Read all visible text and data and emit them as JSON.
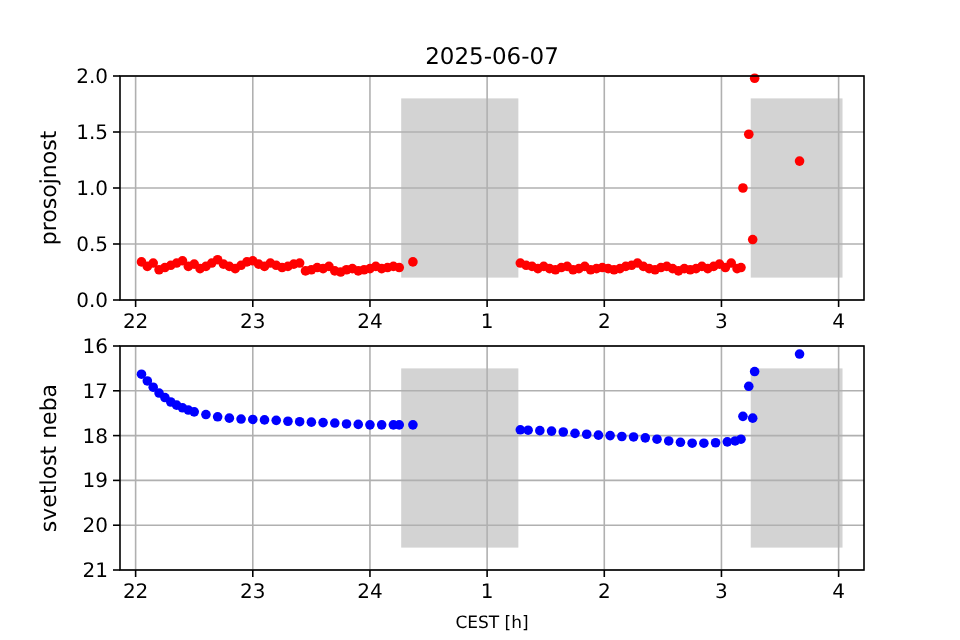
{
  "chart_data": [
    {
      "type": "scatter",
      "title": "2025-06-07",
      "ylabel": "prosojnost",
      "marker": "circle",
      "grid": true,
      "xlim": [
        "2025-06-07T21:52",
        "2025-06-08T04:13"
      ],
      "xticks": [
        {
          "value": "2025-06-07T22:00",
          "label": "22"
        },
        {
          "value": "2025-06-07T23:00",
          "label": "23"
        },
        {
          "value": "2025-06-08T00:00",
          "label": "24"
        },
        {
          "value": "2025-06-08T01:00",
          "label": "1"
        },
        {
          "value": "2025-06-08T02:00",
          "label": "2"
        },
        {
          "value": "2025-06-08T03:00",
          "label": "3"
        },
        {
          "value": "2025-06-08T04:00",
          "label": "4"
        }
      ],
      "ylim": [
        0,
        2
      ],
      "yticks": [
        {
          "value": 0,
          "label": "0.0"
        },
        0.5,
        {
          "value": 1,
          "label": "1.0"
        },
        1.5,
        {
          "value": 2,
          "label": "2.0"
        }
      ],
      "bands": [
        {
          "axis": "x",
          "from": "2025-06-08T00:16",
          "to": "2025-06-08T01:16",
          "color": "#d3d3d3"
        },
        {
          "axis": "x",
          "from": "2025-06-08T03:15",
          "to": "2025-06-08T04:02",
          "color": "#d3d3d3"
        }
      ],
      "series": [
        {
          "color": "#ff0000",
          "x": [
            "2025-06-07T22:03",
            "2025-06-07T22:06",
            "2025-06-07T22:09",
            "2025-06-07T22:12",
            "2025-06-07T22:15",
            "2025-06-07T22:18",
            "2025-06-07T22:21",
            "2025-06-07T22:24",
            "2025-06-07T22:27",
            "2025-06-07T22:30",
            "2025-06-07T22:33",
            "2025-06-07T22:36",
            "2025-06-07T22:39",
            "2025-06-07T22:42",
            "2025-06-07T22:45",
            "2025-06-07T22:48",
            "2025-06-07T22:51",
            "2025-06-07T22:54",
            "2025-06-07T22:57",
            "2025-06-07T23:00",
            "2025-06-07T23:03",
            "2025-06-07T23:06",
            "2025-06-07T23:09",
            "2025-06-07T23:12",
            "2025-06-07T23:15",
            "2025-06-07T23:18",
            "2025-06-07T23:21",
            "2025-06-07T23:24",
            "2025-06-07T23:27",
            "2025-06-07T23:30",
            "2025-06-07T23:33",
            "2025-06-07T23:36",
            "2025-06-07T23:39",
            "2025-06-07T23:42",
            "2025-06-07T23:45",
            "2025-06-07T23:48",
            "2025-06-07T23:51",
            "2025-06-07T23:54",
            "2025-06-07T23:57",
            "2025-06-08T00:00",
            "2025-06-08T00:03",
            "2025-06-08T00:06",
            "2025-06-08T00:09",
            "2025-06-08T00:12",
            "2025-06-08T00:15",
            "2025-06-08T00:22",
            "2025-06-08T01:17",
            "2025-06-08T01:20",
            "2025-06-08T01:23",
            "2025-06-08T01:26",
            "2025-06-08T01:29",
            "2025-06-08T01:32",
            "2025-06-08T01:35",
            "2025-06-08T01:38",
            "2025-06-08T01:41",
            "2025-06-08T01:44",
            "2025-06-08T01:47",
            "2025-06-08T01:50",
            "2025-06-08T01:53",
            "2025-06-08T01:56",
            "2025-06-08T01:59",
            "2025-06-08T02:02",
            "2025-06-08T02:05",
            "2025-06-08T02:08",
            "2025-06-08T02:11",
            "2025-06-08T02:14",
            "2025-06-08T02:17",
            "2025-06-08T02:20",
            "2025-06-08T02:23",
            "2025-06-08T02:26",
            "2025-06-08T02:29",
            "2025-06-08T02:32",
            "2025-06-08T02:35",
            "2025-06-08T02:38",
            "2025-06-08T02:41",
            "2025-06-08T02:44",
            "2025-06-08T02:47",
            "2025-06-08T02:50",
            "2025-06-08T02:53",
            "2025-06-08T02:56",
            "2025-06-08T02:59",
            "2025-06-08T03:02",
            "2025-06-08T03:05",
            "2025-06-08T03:08",
            "2025-06-08T03:10",
            "2025-06-08T03:11",
            "2025-06-08T03:14",
            "2025-06-08T03:16",
            "2025-06-08T03:17",
            "2025-06-08T03:40"
          ],
          "values": [
            0.34,
            0.3,
            0.33,
            0.27,
            0.29,
            0.31,
            0.33,
            0.35,
            0.3,
            0.32,
            0.28,
            0.3,
            0.33,
            0.36,
            0.32,
            0.3,
            0.28,
            0.31,
            0.34,
            0.35,
            0.32,
            0.3,
            0.33,
            0.31,
            0.29,
            0.3,
            0.32,
            0.33,
            0.26,
            0.27,
            0.29,
            0.28,
            0.3,
            0.26,
            0.25,
            0.27,
            0.28,
            0.26,
            0.27,
            0.28,
            0.3,
            0.28,
            0.29,
            0.3,
            0.29,
            0.34,
            0.33,
            0.31,
            0.3,
            0.28,
            0.3,
            0.28,
            0.27,
            0.29,
            0.3,
            0.27,
            0.28,
            0.3,
            0.27,
            0.28,
            0.29,
            0.28,
            0.27,
            0.28,
            0.3,
            0.31,
            0.33,
            0.3,
            0.28,
            0.27,
            0.29,
            0.3,
            0.28,
            0.26,
            0.28,
            0.27,
            0.28,
            0.3,
            0.28,
            0.3,
            0.32,
            0.29,
            0.33,
            0.28,
            0.29,
            1.0,
            1.48,
            0.54,
            1.98,
            1.24
          ]
        }
      ]
    },
    {
      "type": "scatter",
      "ylabel": "svetlost neba",
      "xlabel": "CEST [h]",
      "marker": "circle",
      "grid": true,
      "xlim": [
        "2025-06-07T21:52",
        "2025-06-08T04:13"
      ],
      "xticks": [
        {
          "value": "2025-06-07T22:00",
          "label": "22"
        },
        {
          "value": "2025-06-07T23:00",
          "label": "23"
        },
        {
          "value": "2025-06-08T00:00",
          "label": "24"
        },
        {
          "value": "2025-06-08T01:00",
          "label": "1"
        },
        {
          "value": "2025-06-08T02:00",
          "label": "2"
        },
        {
          "value": "2025-06-08T03:00",
          "label": "3"
        },
        {
          "value": "2025-06-08T04:00",
          "label": "4"
        }
      ],
      "ylim": [
        21,
        16
      ],
      "yticks": [
        16,
        17,
        18,
        19,
        20,
        21
      ],
      "bands": [
        {
          "axis": "x",
          "from": "2025-06-08T00:16",
          "to": "2025-06-08T01:16",
          "color": "#d3d3d3"
        },
        {
          "axis": "x",
          "from": "2025-06-08T03:15",
          "to": "2025-06-08T04:02",
          "color": "#d3d3d3"
        }
      ],
      "series": [
        {
          "color": "#0000ff",
          "x": [
            "2025-06-07T22:03",
            "2025-06-07T22:06",
            "2025-06-07T22:09",
            "2025-06-07T22:12",
            "2025-06-07T22:15",
            "2025-06-07T22:18",
            "2025-06-07T22:21",
            "2025-06-07T22:24",
            "2025-06-07T22:27",
            "2025-06-07T22:30",
            "2025-06-07T22:36",
            "2025-06-07T22:42",
            "2025-06-07T22:48",
            "2025-06-07T22:54",
            "2025-06-07T23:00",
            "2025-06-07T23:06",
            "2025-06-07T23:12",
            "2025-06-07T23:18",
            "2025-06-07T23:24",
            "2025-06-07T23:30",
            "2025-06-07T23:36",
            "2025-06-07T23:42",
            "2025-06-07T23:48",
            "2025-06-07T23:54",
            "2025-06-08T00:00",
            "2025-06-08T00:06",
            "2025-06-08T00:12",
            "2025-06-08T00:15",
            "2025-06-08T00:22",
            "2025-06-08T01:17",
            "2025-06-08T01:21",
            "2025-06-08T01:27",
            "2025-06-08T01:33",
            "2025-06-08T01:39",
            "2025-06-08T01:45",
            "2025-06-08T01:51",
            "2025-06-08T01:57",
            "2025-06-08T02:03",
            "2025-06-08T02:09",
            "2025-06-08T02:15",
            "2025-06-08T02:21",
            "2025-06-08T02:27",
            "2025-06-08T02:33",
            "2025-06-08T02:39",
            "2025-06-08T02:45",
            "2025-06-08T02:51",
            "2025-06-08T02:57",
            "2025-06-08T03:03",
            "2025-06-08T03:07",
            "2025-06-08T03:10",
            "2025-06-08T03:11",
            "2025-06-08T03:14",
            "2025-06-08T03:16",
            "2025-06-08T03:17",
            "2025-06-08T03:40"
          ],
          "values": [
            16.63,
            16.78,
            16.92,
            17.05,
            17.15,
            17.25,
            17.32,
            17.38,
            17.43,
            17.47,
            17.53,
            17.58,
            17.61,
            17.63,
            17.64,
            17.65,
            17.66,
            17.68,
            17.69,
            17.7,
            17.71,
            17.72,
            17.74,
            17.75,
            17.76,
            17.76,
            17.76,
            17.76,
            17.76,
            17.87,
            17.88,
            17.89,
            17.9,
            17.92,
            17.95,
            17.97,
            17.99,
            18.0,
            18.02,
            18.03,
            18.05,
            18.08,
            18.12,
            18.15,
            18.17,
            18.17,
            18.16,
            18.14,
            18.12,
            18.08,
            17.57,
            16.9,
            17.61,
            16.57,
            16.18
          ]
        }
      ]
    }
  ]
}
